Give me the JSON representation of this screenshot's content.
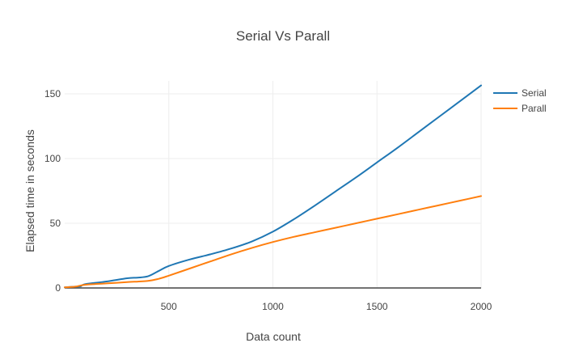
{
  "chart_data": {
    "type": "line",
    "title": "Serial Vs Parall",
    "xlabel": "Data count",
    "ylabel": "Elapsed time in seconds",
    "xlim": [
      0,
      2000
    ],
    "ylim": [
      0,
      160
    ],
    "xticks": [
      500,
      1000,
      1500,
      2000
    ],
    "yticks": [
      0,
      50,
      100,
      150
    ],
    "grid": true,
    "legend_position": "top-right",
    "series": [
      {
        "name": "Serial",
        "color": "#1f77b4",
        "x": [
          0,
          50,
          75,
          100,
          200,
          300,
          350,
          400,
          450,
          500,
          600,
          700,
          800,
          900,
          1000,
          1100,
          1200,
          1300,
          1400,
          1500,
          1600,
          1700,
          1800,
          1900,
          2000
        ],
        "y": [
          0.5,
          1,
          1.2,
          3,
          5,
          7.5,
          8,
          9,
          13,
          17,
          22,
          26,
          30.5,
          36,
          43.5,
          53,
          63.5,
          74.5,
          85.5,
          97,
          108.5,
          120.5,
          132.5,
          144.5,
          156.5
        ]
      },
      {
        "name": "Parall",
        "color": "#ff7f0e",
        "x": [
          0,
          50,
          100,
          200,
          300,
          400,
          450,
          500,
          600,
          700,
          800,
          900,
          1000,
          1100,
          1200,
          1300,
          1400,
          1500,
          1600,
          1700,
          1800,
          1900,
          2000
        ],
        "y": [
          0.5,
          1,
          2.5,
          3.5,
          4.5,
          5.5,
          7,
          9.5,
          15,
          20.5,
          26,
          31,
          35.5,
          39.5,
          43,
          46.5,
          50,
          53.5,
          57,
          60.5,
          64,
          67.5,
          71
        ]
      }
    ]
  }
}
